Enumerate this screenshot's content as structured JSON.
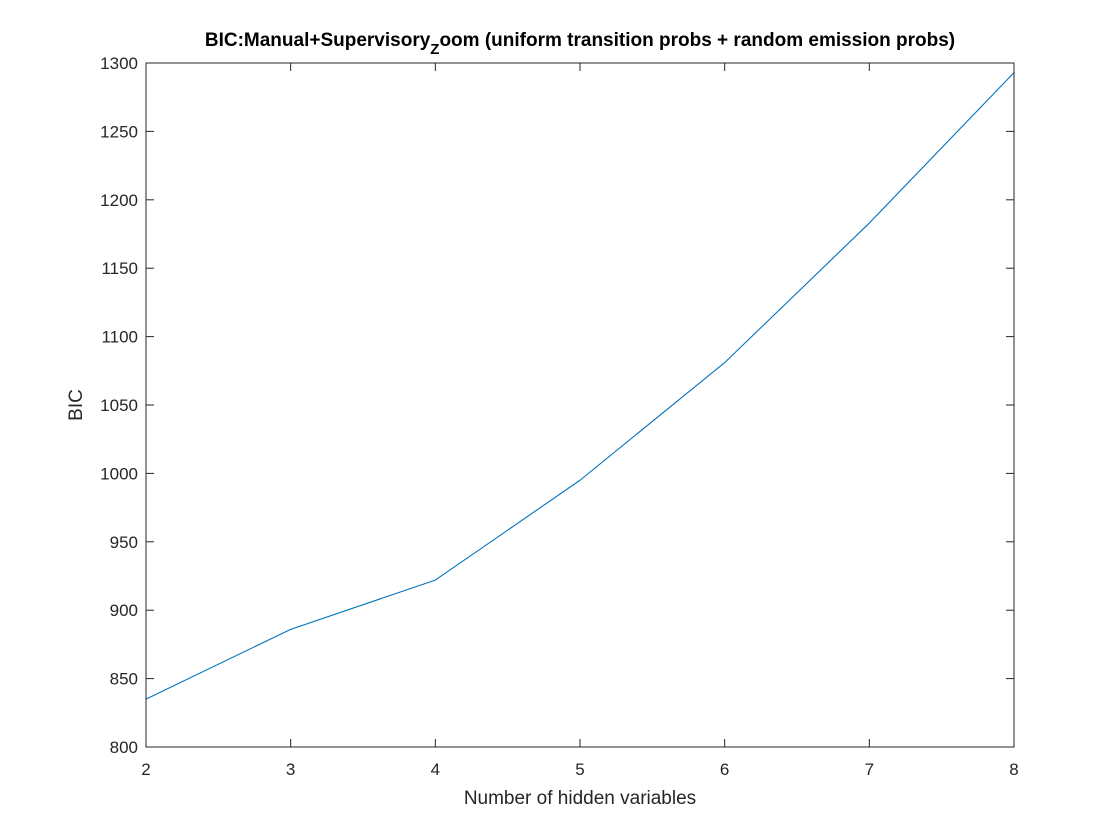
{
  "chart_data": {
    "type": "line",
    "title_main": "BIC:Manual+Supervisory",
    "title_subscript": "Z",
    "title_rest": "oom (uniform transition probs + random emission probs)",
    "xlabel": "Number of hidden variables",
    "ylabel": "BIC",
    "xlim": [
      2,
      8
    ],
    "ylim": [
      800,
      1300
    ],
    "xticks": [
      2,
      3,
      4,
      5,
      6,
      7,
      8
    ],
    "yticks": [
      800,
      850,
      900,
      950,
      1000,
      1050,
      1100,
      1150,
      1200,
      1250,
      1300
    ],
    "grid": false,
    "x": [
      2,
      3,
      4,
      5,
      6,
      7,
      8
    ],
    "series": [
      {
        "values": [
          835,
          886,
          922,
          995,
          1081,
          1183,
          1293
        ],
        "color": "#0072BD"
      }
    ],
    "axis_color": "#262626",
    "box": true
  }
}
